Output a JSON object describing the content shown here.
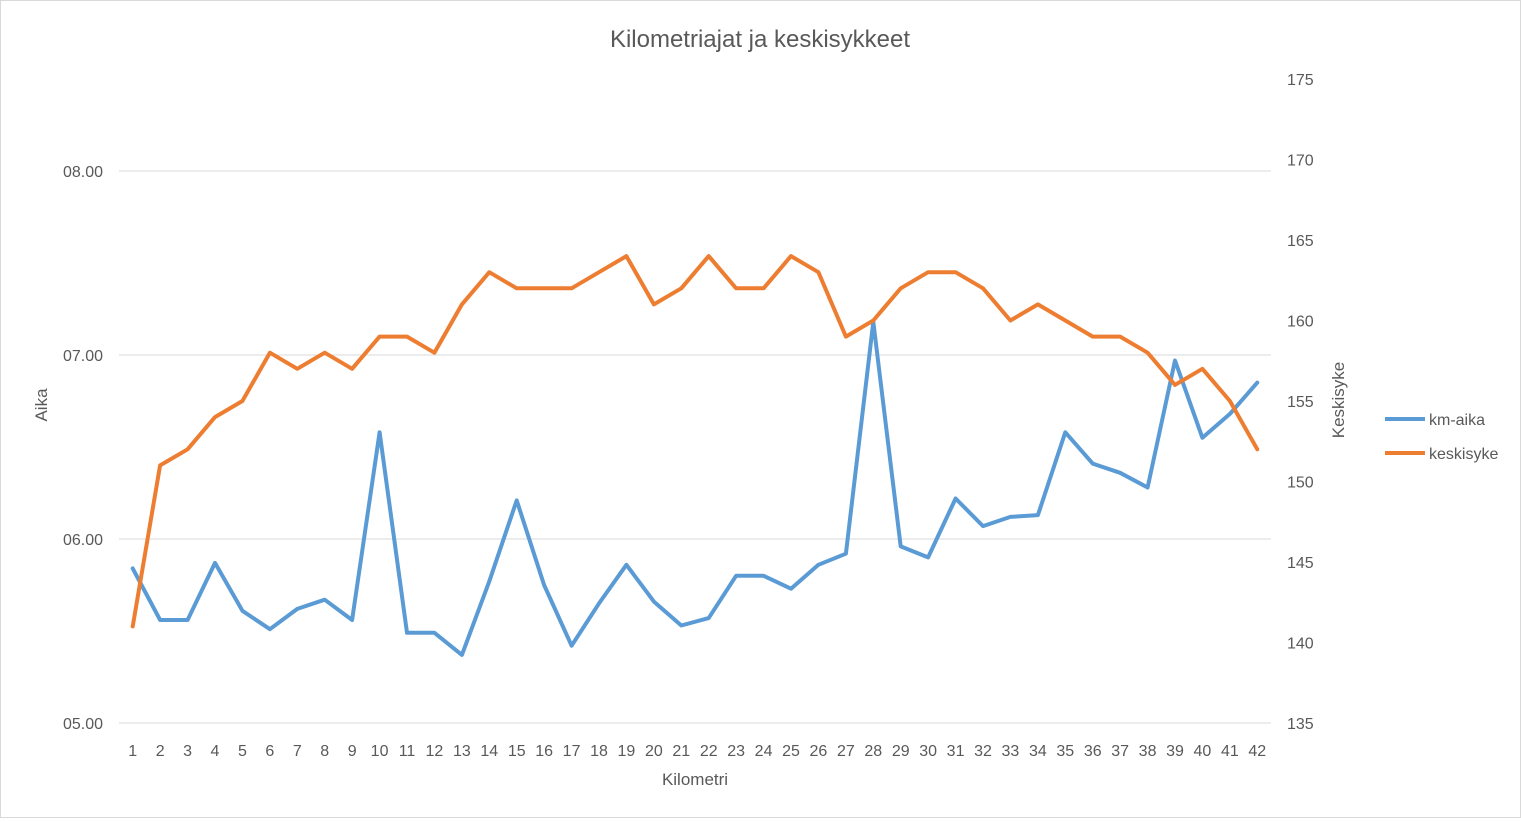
{
  "chart_data": {
    "type": "line",
    "title": "Kilometriajat ja keskisykkeet",
    "xlabel": "Kilometri",
    "ylabel": "Aika",
    "y2label": "Keskisyke",
    "categories": [
      "1",
      "2",
      "3",
      "4",
      "5",
      "6",
      "7",
      "8",
      "9",
      "10",
      "11",
      "12",
      "13",
      "14",
      "15",
      "16",
      "17",
      "18",
      "19",
      "20",
      "21",
      "22",
      "23",
      "24",
      "25",
      "26",
      "27",
      "28",
      "29",
      "30",
      "31",
      "32",
      "33",
      "34",
      "35",
      "36",
      "37",
      "38",
      "39",
      "40",
      "41",
      "42"
    ],
    "y_ticks": [
      "05.00",
      "06.00",
      "07.00",
      "08.00"
    ],
    "y_ticks_values": [
      5,
      6,
      7,
      8
    ],
    "ylim": [
      5,
      8.5
    ],
    "y2_ticks": [
      135,
      140,
      145,
      150,
      155,
      160,
      165,
      170,
      175
    ],
    "y2lim": [
      135,
      175
    ],
    "grid": true,
    "legend_position": "right",
    "series": [
      {
        "name": "km-aika",
        "axis": "left",
        "color": "#5b9bd5",
        "values": [
          5.84,
          5.56,
          5.56,
          5.87,
          5.61,
          5.51,
          5.62,
          5.67,
          5.56,
          6.58,
          5.49,
          5.49,
          5.37,
          5.77,
          6.21,
          5.75,
          5.42,
          5.65,
          5.86,
          5.66,
          5.53,
          5.57,
          5.8,
          5.8,
          5.73,
          5.86,
          5.92,
          7.18,
          5.96,
          5.9,
          6.22,
          6.07,
          6.12,
          6.13,
          6.58,
          6.41,
          6.36,
          6.28,
          6.97,
          6.55,
          6.68,
          6.85
        ]
      },
      {
        "name": "keskisyke",
        "axis": "right",
        "color": "#ed7d31",
        "values": [
          141,
          151,
          152,
          154,
          155,
          158,
          157,
          158,
          157,
          159,
          159,
          158,
          161,
          163,
          162,
          162,
          162,
          163,
          164,
          161,
          162,
          164,
          162,
          162,
          164,
          163,
          159,
          160,
          162,
          163,
          163,
          162,
          160,
          161,
          160,
          159,
          159,
          158,
          156,
          157,
          155,
          152
        ]
      }
    ]
  }
}
